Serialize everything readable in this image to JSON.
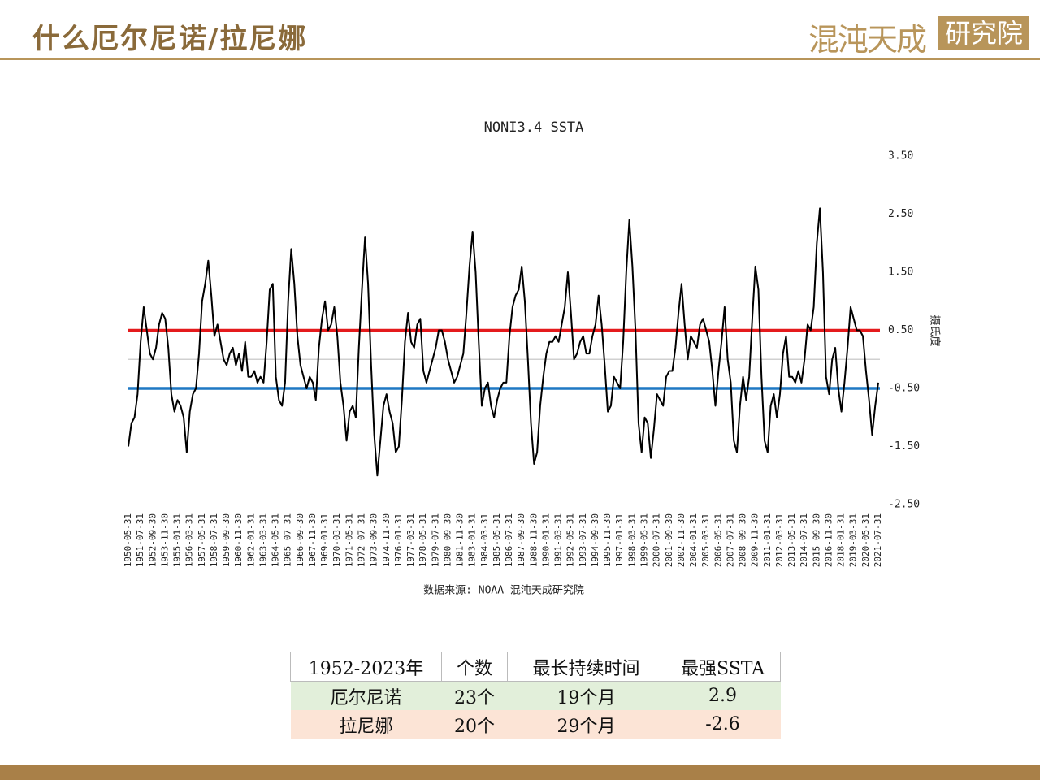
{
  "header": {
    "title": "什么厄尔尼诺/拉尼娜",
    "logo": "混沌天成",
    "logo_box": "研究院"
  },
  "chart_data": {
    "type": "line",
    "title": "NONI3.4 SSTA",
    "y_label": "摄氏度",
    "source": "数据来源: NOAA 混沌天成研究院",
    "ylim": [
      -2.5,
      3.5
    ],
    "yticks": [
      {
        "value": 3.5,
        "label": "3.50"
      },
      {
        "value": 2.5,
        "label": "2.50"
      },
      {
        "value": 1.5,
        "label": "1.50"
      },
      {
        "value": 0.5,
        "label": "0.50"
      },
      {
        "value": -0.5,
        "label": "-0.50"
      },
      {
        "value": -1.5,
        "label": "-1.50"
      },
      {
        "value": -2.5,
        "label": "-2.50"
      }
    ],
    "hlines": [
      {
        "value": 0,
        "color": "#d0d0d0"
      },
      {
        "value": 0.5,
        "color": "#e41a1c"
      },
      {
        "value": -0.5,
        "color": "#1f78c4"
      }
    ],
    "categories": [
      "1950-05-31",
      null,
      null,
      null,
      "1951-07-31",
      null,
      null,
      null,
      "1952-09-30",
      null,
      null,
      null,
      "1953-11-30",
      null,
      null,
      null,
      "1955-01-31",
      null,
      null,
      null,
      "1956-03-31",
      null,
      null,
      null,
      "1957-05-31",
      null,
      null,
      null,
      "1958-07-31",
      null,
      null,
      null,
      "1959-09-30",
      null,
      null,
      null,
      "1960-11-30",
      null,
      null,
      null,
      "1962-01-31",
      null,
      null,
      null,
      "1963-03-31",
      null,
      null,
      null,
      "1964-05-31",
      null,
      null,
      null,
      "1965-07-31",
      null,
      null,
      null,
      "1966-09-30",
      null,
      null,
      null,
      "1967-11-30",
      null,
      null,
      null,
      "1969-01-31",
      null,
      null,
      null,
      "1970-03-31",
      null,
      null,
      null,
      "1971-05-31",
      null,
      null,
      null,
      "1972-07-31",
      null,
      null,
      null,
      "1973-09-30",
      null,
      null,
      null,
      "1974-11-30",
      null,
      null,
      null,
      "1976-01-31",
      null,
      null,
      null,
      "1977-03-31",
      null,
      null,
      null,
      "1978-05-31",
      null,
      null,
      null,
      "1979-07-31",
      null,
      null,
      null,
      "1980-09-30",
      null,
      null,
      null,
      "1981-11-30",
      null,
      null,
      null,
      "1983-01-31",
      null,
      null,
      null,
      "1984-03-31",
      null,
      null,
      null,
      "1985-05-31",
      null,
      null,
      null,
      "1986-07-31",
      null,
      null,
      null,
      "1987-09-30",
      null,
      null,
      null,
      "1988-11-30",
      null,
      null,
      null,
      "1990-01-31",
      null,
      null,
      null,
      "1991-03-31",
      null,
      null,
      null,
      "1992-05-31",
      null,
      null,
      null,
      "1993-07-31",
      null,
      null,
      null,
      "1994-09-30",
      null,
      null,
      null,
      "1995-11-30",
      null,
      null,
      null,
      "1997-01-31",
      null,
      null,
      null,
      "1998-03-31",
      null,
      null,
      null,
      "1999-05-31",
      null,
      null,
      null,
      "2000-07-31",
      null,
      null,
      null,
      "2001-09-30",
      null,
      null,
      null,
      "2002-11-30",
      null,
      null,
      null,
      "2004-01-31",
      null,
      null,
      null,
      "2005-03-31",
      null,
      null,
      null,
      "2006-05-31",
      null,
      null,
      null,
      "2007-07-31",
      null,
      null,
      null,
      "2008-09-30",
      null,
      null,
      null,
      "2009-11-30",
      null,
      null,
      null,
      "2011-01-31",
      null,
      null,
      null,
      "2012-03-31",
      null,
      null,
      null,
      "2013-05-31",
      null,
      null,
      null,
      "2014-07-31",
      null,
      null,
      null,
      "2015-09-30",
      null,
      null,
      null,
      "2016-11-30",
      null,
      null,
      null,
      "2018-01-31",
      null,
      null,
      null,
      "2019-03-31",
      null,
      null,
      null,
      "2020-05-31",
      null,
      null,
      null,
      "2021-07-31"
    ],
    "series": [
      {
        "name": "NONI3.4 SSTA",
        "color": "#000000",
        "values": [
          -1.5,
          -1.1,
          -1.0,
          -0.6,
          0.3,
          0.9,
          0.5,
          0.1,
          0.0,
          0.2,
          0.6,
          0.8,
          0.7,
          0.2,
          -0.6,
          -0.9,
          -0.7,
          -0.8,
          -1.0,
          -1.6,
          -0.9,
          -0.6,
          -0.5,
          0.1,
          1.0,
          1.3,
          1.7,
          1.1,
          0.4,
          0.6,
          0.3,
          0.0,
          -0.1,
          0.1,
          0.2,
          -0.1,
          0.1,
          -0.2,
          0.3,
          -0.3,
          -0.3,
          -0.2,
          -0.4,
          -0.3,
          -0.4,
          0.3,
          1.2,
          1.3,
          -0.3,
          -0.7,
          -0.8,
          -0.4,
          1.0,
          1.9,
          1.3,
          0.4,
          -0.1,
          -0.3,
          -0.5,
          -0.3,
          -0.4,
          -0.7,
          0.2,
          0.7,
          1.0,
          0.5,
          0.6,
          0.9,
          0.4,
          -0.4,
          -0.8,
          -1.4,
          -0.9,
          -0.8,
          -1.0,
          0.2,
          1.2,
          2.1,
          1.3,
          -0.1,
          -1.3,
          -2.0,
          -1.4,
          -0.8,
          -0.6,
          -0.9,
          -1.1,
          -1.6,
          -1.5,
          -0.7,
          0.3,
          0.8,
          0.3,
          0.2,
          0.6,
          0.7,
          -0.2,
          -0.4,
          -0.2,
          0.0,
          0.2,
          0.5,
          0.5,
          0.3,
          0.0,
          -0.2,
          -0.4,
          -0.3,
          -0.1,
          0.1,
          0.8,
          1.6,
          2.2,
          1.5,
          0.3,
          -0.8,
          -0.5,
          -0.4,
          -0.8,
          -1.0,
          -0.7,
          -0.5,
          -0.4,
          -0.4,
          0.4,
          0.9,
          1.1,
          1.2,
          1.6,
          1.0,
          0.0,
          -1.1,
          -1.8,
          -1.6,
          -0.8,
          -0.3,
          0.1,
          0.3,
          0.3,
          0.4,
          0.3,
          0.6,
          0.9,
          1.5,
          0.8,
          0.0,
          0.1,
          0.3,
          0.4,
          0.1,
          0.1,
          0.4,
          0.6,
          1.1,
          0.6,
          -0.1,
          -0.9,
          -0.8,
          -0.3,
          -0.4,
          -0.5,
          0.3,
          1.5,
          2.4,
          1.6,
          0.5,
          -1.1,
          -1.6,
          -1.0,
          -1.1,
          -1.7,
          -1.2,
          -0.6,
          -0.7,
          -0.8,
          -0.3,
          -0.2,
          -0.2,
          0.2,
          0.8,
          1.3,
          0.6,
          0.0,
          0.4,
          0.3,
          0.2,
          0.6,
          0.7,
          0.5,
          0.3,
          -0.2,
          -0.8,
          -0.2,
          0.3,
          0.9,
          0.0,
          -0.4,
          -1.4,
          -1.6,
          -0.8,
          -0.3,
          -0.7,
          -0.3,
          0.7,
          1.6,
          1.2,
          -0.3,
          -1.4,
          -1.6,
          -0.8,
          -0.6,
          -1.0,
          -0.6,
          0.1,
          0.4,
          -0.3,
          -0.3,
          -0.4,
          -0.2,
          -0.4,
          0.0,
          0.6,
          0.5,
          0.9,
          2.0,
          2.6,
          1.5,
          -0.3,
          -0.6,
          0.0,
          0.2,
          -0.5,
          -0.9,
          -0.4,
          0.2,
          0.9,
          0.7,
          0.5,
          0.5,
          0.4,
          -0.2,
          -0.7,
          -1.3,
          -0.8,
          -0.4
        ]
      }
    ]
  },
  "table": {
    "header": [
      "1952-2023年",
      "个数",
      "最长持续时间",
      "最强SSTA"
    ],
    "rows": [
      [
        "厄尔尼诺",
        "23个",
        "19个月",
        "2.9"
      ],
      [
        "拉尼娜",
        "20个",
        "29个月",
        "-2.6"
      ]
    ],
    "row_colors": [
      "#e2efda",
      "#fce4d6"
    ]
  }
}
